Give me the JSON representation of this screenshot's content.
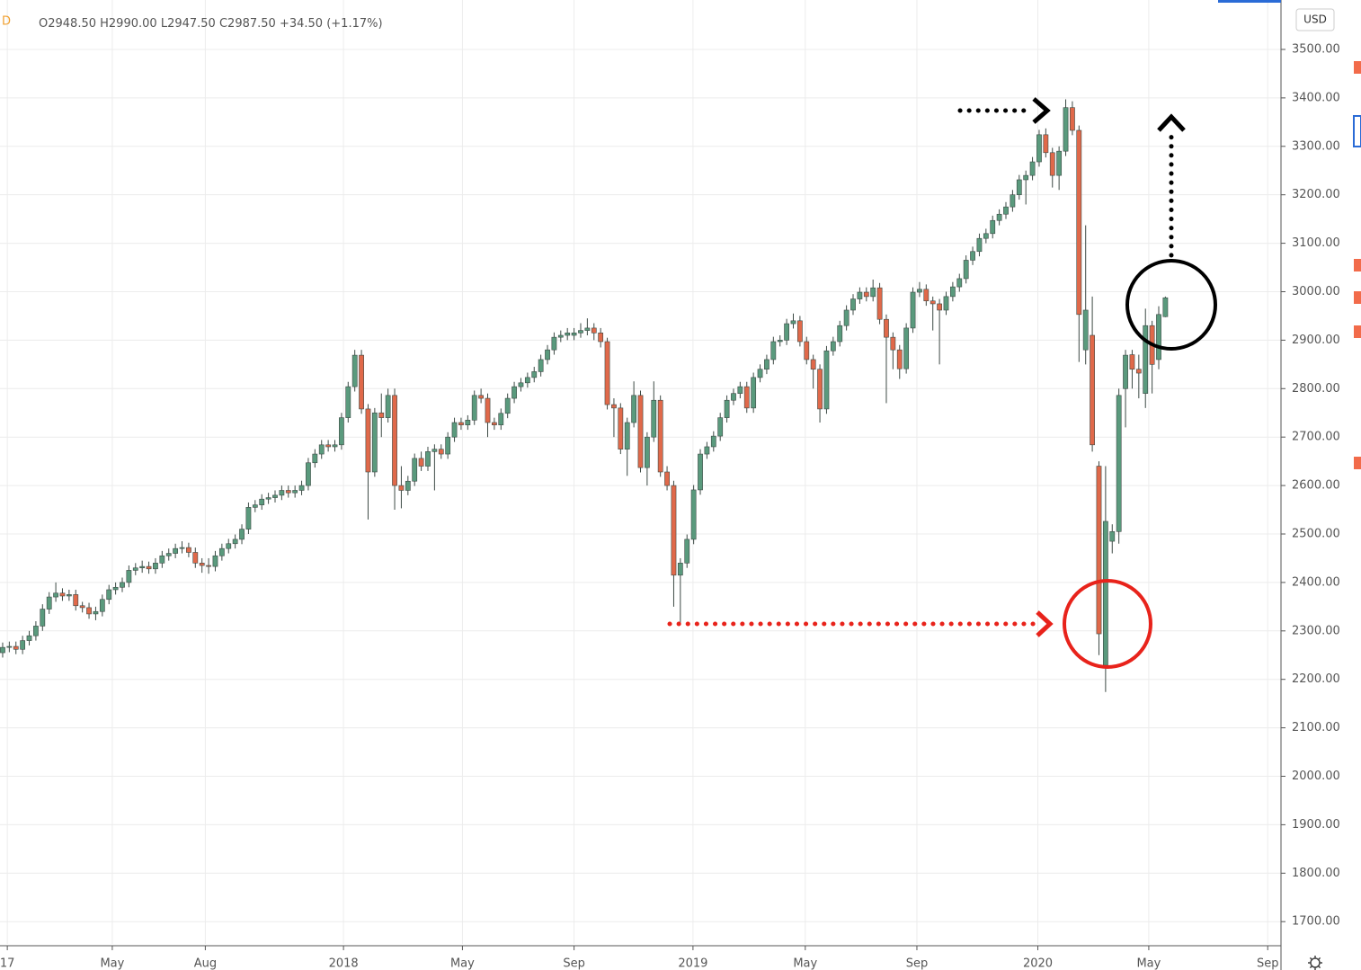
{
  "chart_data": {
    "type": "candlestick",
    "header": {
      "interval": "D",
      "open": "O2948.50",
      "high": "H2990.00",
      "low": "L2947.50",
      "close": "C2987.50",
      "change": "+34.50 (+1.17%)"
    },
    "currency": "USD",
    "up_color": "#5a9a7d",
    "down_color": "#e0694a",
    "grid": true,
    "xlim": [
      -0.4,
      192.4
    ],
    "ylim": [
      1654,
      3602
    ],
    "yticks": [
      {
        "value": 1700,
        "label": "1700.00"
      },
      {
        "value": 1800,
        "label": "1800.00"
      },
      {
        "value": 1900,
        "label": "1900.00"
      },
      {
        "value": 2000,
        "label": "2000.00"
      },
      {
        "value": 2100,
        "label": "2100.00"
      },
      {
        "value": 2200,
        "label": "2200.00"
      },
      {
        "value": 2300,
        "label": "2300.00"
      },
      {
        "value": 2400,
        "label": "2400.00"
      },
      {
        "value": 2500,
        "label": "2500.00"
      },
      {
        "value": 2600,
        "label": "2600.00"
      },
      {
        "value": 2700,
        "label": "2700.00"
      },
      {
        "value": 2800,
        "label": "2800.00"
      },
      {
        "value": 2900,
        "label": "2900.00"
      },
      {
        "value": 3000,
        "label": "3000.00"
      },
      {
        "value": 3100,
        "label": "3100.00"
      },
      {
        "value": 3200,
        "label": "3200.00"
      },
      {
        "value": 3300,
        "label": "3300.00"
      },
      {
        "value": 3400,
        "label": "3400.00"
      },
      {
        "value": 3500,
        "label": "3500.00"
      }
    ],
    "xticks": [
      {
        "value": 0.7,
        "label": "17"
      },
      {
        "value": 16.5,
        "label": "May"
      },
      {
        "value": 30.5,
        "label": "Aug"
      },
      {
        "value": 51.3,
        "label": "2018"
      },
      {
        "value": 69.2,
        "label": "May"
      },
      {
        "value": 86,
        "label": "Sep"
      },
      {
        "value": 103.9,
        "label": "2019"
      },
      {
        "value": 120.8,
        "label": "May"
      },
      {
        "value": 137.6,
        "label": "Sep"
      },
      {
        "value": 155.8,
        "label": "2020"
      },
      {
        "value": 172.5,
        "label": "May"
      },
      {
        "value": 190.4,
        "label": "Sep"
      }
    ],
    "ohlc": [
      [
        2255,
        2276,
        2245,
        2266
      ],
      [
        2266,
        2278,
        2256,
        2268
      ],
      [
        2268,
        2278,
        2252,
        2262
      ],
      [
        2262,
        2290,
        2252,
        2280
      ],
      [
        2280,
        2300,
        2270,
        2290
      ],
      [
        2290,
        2320,
        2280,
        2310
      ],
      [
        2310,
        2355,
        2300,
        2345
      ],
      [
        2345,
        2380,
        2335,
        2370
      ],
      [
        2370,
        2400,
        2360,
        2378
      ],
      [
        2378,
        2388,
        2362,
        2372
      ],
      [
        2372,
        2385,
        2362,
        2375
      ],
      [
        2375,
        2385,
        2342,
        2352
      ],
      [
        2352,
        2360,
        2338,
        2348
      ],
      [
        2348,
        2358,
        2325,
        2335
      ],
      [
        2335,
        2350,
        2322,
        2340
      ],
      [
        2340,
        2375,
        2330,
        2365
      ],
      [
        2365,
        2395,
        2355,
        2385
      ],
      [
        2385,
        2400,
        2375,
        2390
      ],
      [
        2390,
        2410,
        2380,
        2400
      ],
      [
        2400,
        2435,
        2390,
        2425
      ],
      [
        2425,
        2440,
        2415,
        2430
      ],
      [
        2430,
        2445,
        2420,
        2433
      ],
      [
        2433,
        2443,
        2418,
        2428
      ],
      [
        2428,
        2450,
        2418,
        2440
      ],
      [
        2440,
        2465,
        2430,
        2455
      ],
      [
        2455,
        2470,
        2445,
        2460
      ],
      [
        2460,
        2480,
        2450,
        2470
      ],
      [
        2470,
        2485,
        2460,
        2472
      ],
      [
        2472,
        2482,
        2452,
        2462
      ],
      [
        2462,
        2472,
        2430,
        2440
      ],
      [
        2440,
        2450,
        2420,
        2435
      ],
      [
        2435,
        2450,
        2418,
        2433
      ],
      [
        2433,
        2465,
        2423,
        2455
      ],
      [
        2455,
        2480,
        2445,
        2470
      ],
      [
        2470,
        2490,
        2460,
        2480
      ],
      [
        2480,
        2499,
        2470,
        2489
      ],
      [
        2489,
        2520,
        2479,
        2510
      ],
      [
        2510,
        2565,
        2500,
        2555
      ],
      [
        2555,
        2570,
        2545,
        2560
      ],
      [
        2560,
        2582,
        2550,
        2572
      ],
      [
        2572,
        2585,
        2562,
        2575
      ],
      [
        2575,
        2590,
        2565,
        2580
      ],
      [
        2580,
        2600,
        2570,
        2590
      ],
      [
        2590,
        2600,
        2575,
        2585
      ],
      [
        2585,
        2600,
        2575,
        2590
      ],
      [
        2590,
        2610,
        2580,
        2600
      ],
      [
        2600,
        2657,
        2590,
        2647
      ],
      [
        2647,
        2675,
        2637,
        2665
      ],
      [
        2665,
        2694,
        2655,
        2684
      ],
      [
        2684,
        2694,
        2670,
        2680
      ],
      [
        2680,
        2694,
        2670,
        2684
      ],
      [
        2684,
        2750,
        2674,
        2740
      ],
      [
        2740,
        2814,
        2730,
        2804
      ],
      [
        2804,
        2880,
        2794,
        2869
      ],
      [
        2869,
        2880,
        2748,
        2758
      ],
      [
        2758,
        2768,
        2530,
        2628
      ],
      [
        2628,
        2760,
        2618,
        2750
      ],
      [
        2750,
        2790,
        2700,
        2740
      ],
      [
        2740,
        2800,
        2730,
        2786
      ],
      [
        2786,
        2800,
        2550,
        2600
      ],
      [
        2600,
        2640,
        2553,
        2590
      ],
      [
        2590,
        2620,
        2580,
        2609
      ],
      [
        2609,
        2666,
        2599,
        2656
      ],
      [
        2656,
        2670,
        2630,
        2640
      ],
      [
        2640,
        2680,
        2630,
        2670
      ],
      [
        2670,
        2685,
        2590,
        2675
      ],
      [
        2675,
        2685,
        2655,
        2665
      ],
      [
        2665,
        2710,
        2655,
        2700
      ],
      [
        2700,
        2740,
        2690,
        2730
      ],
      [
        2730,
        2740,
        2715,
        2725
      ],
      [
        2725,
        2745,
        2715,
        2735
      ],
      [
        2735,
        2796,
        2725,
        2786
      ],
      [
        2786,
        2800,
        2770,
        2780
      ],
      [
        2780,
        2790,
        2700,
        2730
      ],
      [
        2730,
        2740,
        2715,
        2725
      ],
      [
        2725,
        2759,
        2715,
        2749
      ],
      [
        2749,
        2790,
        2739,
        2780
      ],
      [
        2780,
        2814,
        2770,
        2804
      ],
      [
        2804,
        2822,
        2794,
        2812
      ],
      [
        2812,
        2833,
        2802,
        2823
      ],
      [
        2823,
        2845,
        2813,
        2835
      ],
      [
        2835,
        2870,
        2825,
        2860
      ],
      [
        2860,
        2890,
        2850,
        2880
      ],
      [
        2880,
        2916,
        2870,
        2906
      ],
      [
        2906,
        2920,
        2896,
        2910
      ],
      [
        2910,
        2925,
        2900,
        2915
      ],
      [
        2910,
        2925,
        2900,
        2915
      ],
      [
        2915,
        2935,
        2905,
        2920
      ],
      [
        2920,
        2945,
        2910,
        2925
      ],
      [
        2925,
        2935,
        2900,
        2915
      ],
      [
        2915,
        2925,
        2885,
        2897
      ],
      [
        2897,
        2905,
        2757,
        2767
      ],
      [
        2767,
        2780,
        2700,
        2760
      ],
      [
        2760,
        2770,
        2665,
        2675
      ],
      [
        2675,
        2740,
        2620,
        2730
      ],
      [
        2730,
        2815,
        2720,
        2786
      ],
      [
        2786,
        2796,
        2627,
        2637
      ],
      [
        2637,
        2710,
        2600,
        2700
      ],
      [
        2700,
        2815,
        2690,
        2776
      ],
      [
        2776,
        2786,
        2618,
        2628
      ],
      [
        2628,
        2640,
        2590,
        2600
      ],
      [
        2600,
        2610,
        2350,
        2415
      ],
      [
        2415,
        2450,
        2317,
        2440
      ],
      [
        2440,
        2499,
        2430,
        2489
      ],
      [
        2489,
        2601,
        2479,
        2591
      ],
      [
        2591,
        2675,
        2581,
        2665
      ],
      [
        2665,
        2690,
        2655,
        2680
      ],
      [
        2680,
        2712,
        2670,
        2702
      ],
      [
        2702,
        2750,
        2692,
        2740
      ],
      [
        2740,
        2786,
        2730,
        2776
      ],
      [
        2776,
        2800,
        2766,
        2790
      ],
      [
        2790,
        2814,
        2780,
        2804
      ],
      [
        2804,
        2814,
        2750,
        2760
      ],
      [
        2760,
        2833,
        2750,
        2823
      ],
      [
        2823,
        2850,
        2813,
        2840
      ],
      [
        2840,
        2870,
        2830,
        2860
      ],
      [
        2860,
        2907,
        2850,
        2897
      ],
      [
        2897,
        2910,
        2887,
        2900
      ],
      [
        2900,
        2944,
        2890,
        2934
      ],
      [
        2934,
        2955,
        2924,
        2940
      ],
      [
        2940,
        2950,
        2887,
        2897
      ],
      [
        2897,
        2907,
        2850,
        2860
      ],
      [
        2860,
        2870,
        2800,
        2840
      ],
      [
        2840,
        2850,
        2730,
        2758
      ],
      [
        2758,
        2888,
        2748,
        2878
      ],
      [
        2878,
        2907,
        2868,
        2897
      ],
      [
        2897,
        2940,
        2887,
        2930
      ],
      [
        2930,
        2972,
        2920,
        2962
      ],
      [
        2962,
        2995,
        2952,
        2985
      ],
      [
        2985,
        3009,
        2975,
        2999
      ],
      [
        2999,
        3009,
        2980,
        2990
      ],
      [
        2990,
        3025,
        2980,
        3008
      ],
      [
        3008,
        3018,
        2933,
        2943
      ],
      [
        2943,
        2953,
        2770,
        2906
      ],
      [
        2906,
        2916,
        2840,
        2880
      ],
      [
        2880,
        2890,
        2820,
        2841
      ],
      [
        2841,
        2935,
        2831,
        2925
      ],
      [
        2925,
        3009,
        2915,
        2999
      ],
      [
        2999,
        3020,
        2989,
        3005
      ],
      [
        3005,
        3015,
        2971,
        2981
      ],
      [
        2981,
        2990,
        2920,
        2975
      ],
      [
        2975,
        2985,
        2850,
        2962
      ],
      [
        2962,
        3000,
        2952,
        2990
      ],
      [
        2990,
        3020,
        2980,
        3010
      ],
      [
        3010,
        3037,
        3000,
        3027
      ],
      [
        3027,
        3075,
        3017,
        3065
      ],
      [
        3065,
        3093,
        3055,
        3083
      ],
      [
        3083,
        3120,
        3073,
        3110
      ],
      [
        3110,
        3130,
        3100,
        3120
      ],
      [
        3120,
        3157,
        3110,
        3147
      ],
      [
        3147,
        3170,
        3137,
        3160
      ],
      [
        3160,
        3185,
        3150,
        3175
      ],
      [
        3175,
        3210,
        3165,
        3200
      ],
      [
        3200,
        3241,
        3190,
        3231
      ],
      [
        3231,
        3250,
        3180,
        3240
      ],
      [
        3240,
        3278,
        3230,
        3268
      ],
      [
        3268,
        3334,
        3258,
        3324
      ],
      [
        3324,
        3337,
        3277,
        3287
      ],
      [
        3287,
        3297,
        3215,
        3240
      ],
      [
        3240,
        3300,
        3210,
        3290
      ],
      [
        3290,
        3397,
        3280,
        3380
      ],
      [
        3380,
        3393,
        3323,
        3333
      ],
      [
        3333,
        3343,
        2855,
        2953
      ],
      [
        2880,
        3137,
        2850,
        2962
      ],
      [
        2910,
        2990,
        2670,
        2684
      ],
      [
        2640,
        2650,
        2250,
        2294
      ],
      [
        2229,
        2640,
        2174,
        2526
      ],
      [
        2485,
        2520,
        2460,
        2505
      ],
      [
        2505,
        2800,
        2480,
        2786
      ],
      [
        2800,
        2880,
        2720,
        2869
      ],
      [
        2870,
        2880,
        2800,
        2840
      ],
      [
        2840,
        2870,
        2780,
        2832
      ],
      [
        2790,
        2965,
        2760,
        2930
      ],
      [
        2930,
        2940,
        2790,
        2850
      ],
      [
        2860,
        2970,
        2840,
        2953
      ],
      [
        2948.5,
        2990,
        2947.5,
        2987.5
      ]
    ]
  }
}
